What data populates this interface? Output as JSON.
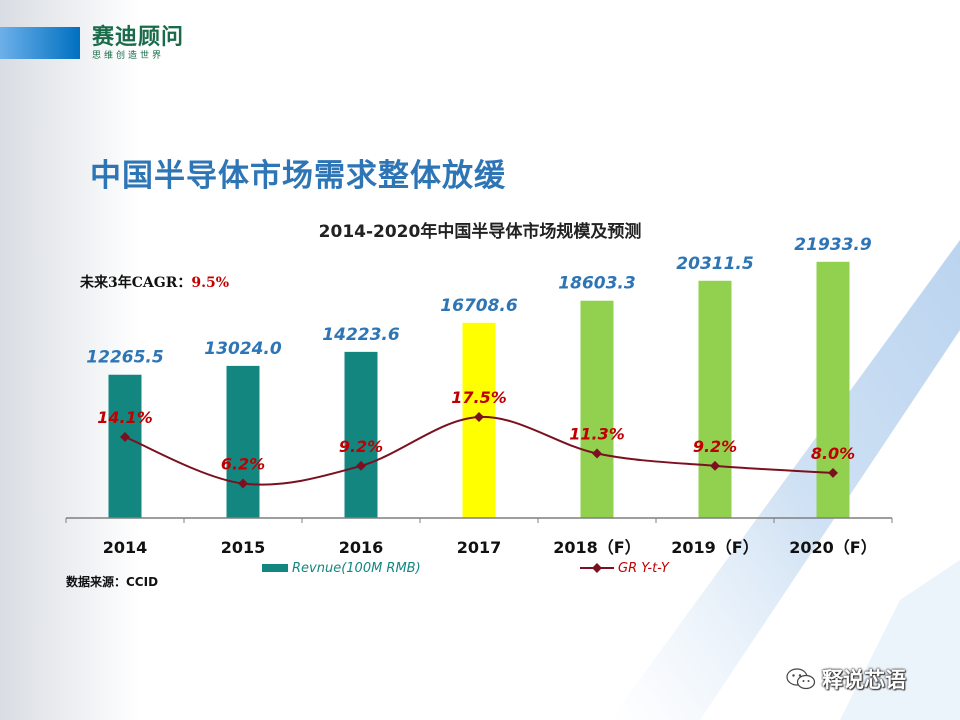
{
  "logo": {
    "name": "赛迪顾问",
    "tagline": "思维创造世界"
  },
  "slide_title": "中国半导体市场需求整体放缓",
  "source_note": "数据来源：CCID",
  "cagr": {
    "label": "未来3年CAGR：",
    "value": "9.5%"
  },
  "watermark": "释说芯语",
  "colors": {
    "teal": "#138680",
    "yellow": "#ffff00",
    "green": "#92d050",
    "line": "#7b1020",
    "value_blue": "#2e75b6",
    "pct_red": "#c00000"
  },
  "chart_data": {
    "type": "bar",
    "title": "2014-2020年中国半导体市场规模及预测",
    "categories": [
      "2014",
      "2015",
      "2016",
      "2017",
      "2018（F）",
      "2019（F）",
      "2020（F）"
    ],
    "series": [
      {
        "name": "Revnue(100M RMB)",
        "type": "bar",
        "values": [
          12265.5,
          13024.0,
          14223.6,
          16708.6,
          18603.3,
          20311.5,
          21933.9
        ],
        "labels": [
          "12265.5",
          "13024.0",
          "14223.6",
          "16708.6",
          "18603.3",
          "20311.5",
          "21933.9"
        ],
        "colors": [
          "#138680",
          "#138680",
          "#138680",
          "#ffff00",
          "#92d050",
          "#92d050",
          "#92d050"
        ]
      },
      {
        "name": "GR Y-t-Y",
        "type": "line",
        "values": [
          14.1,
          6.2,
          9.2,
          17.5,
          11.3,
          9.2,
          8.0
        ],
        "labels": [
          "14.1%",
          "6.2%",
          "9.2%",
          "17.5%",
          "11.3%",
          "9.2%",
          "8.0%"
        ]
      }
    ],
    "ylim": [
      0,
      24000
    ],
    "y2lim": [
      0,
      27
    ],
    "legend_position": "bottom"
  }
}
